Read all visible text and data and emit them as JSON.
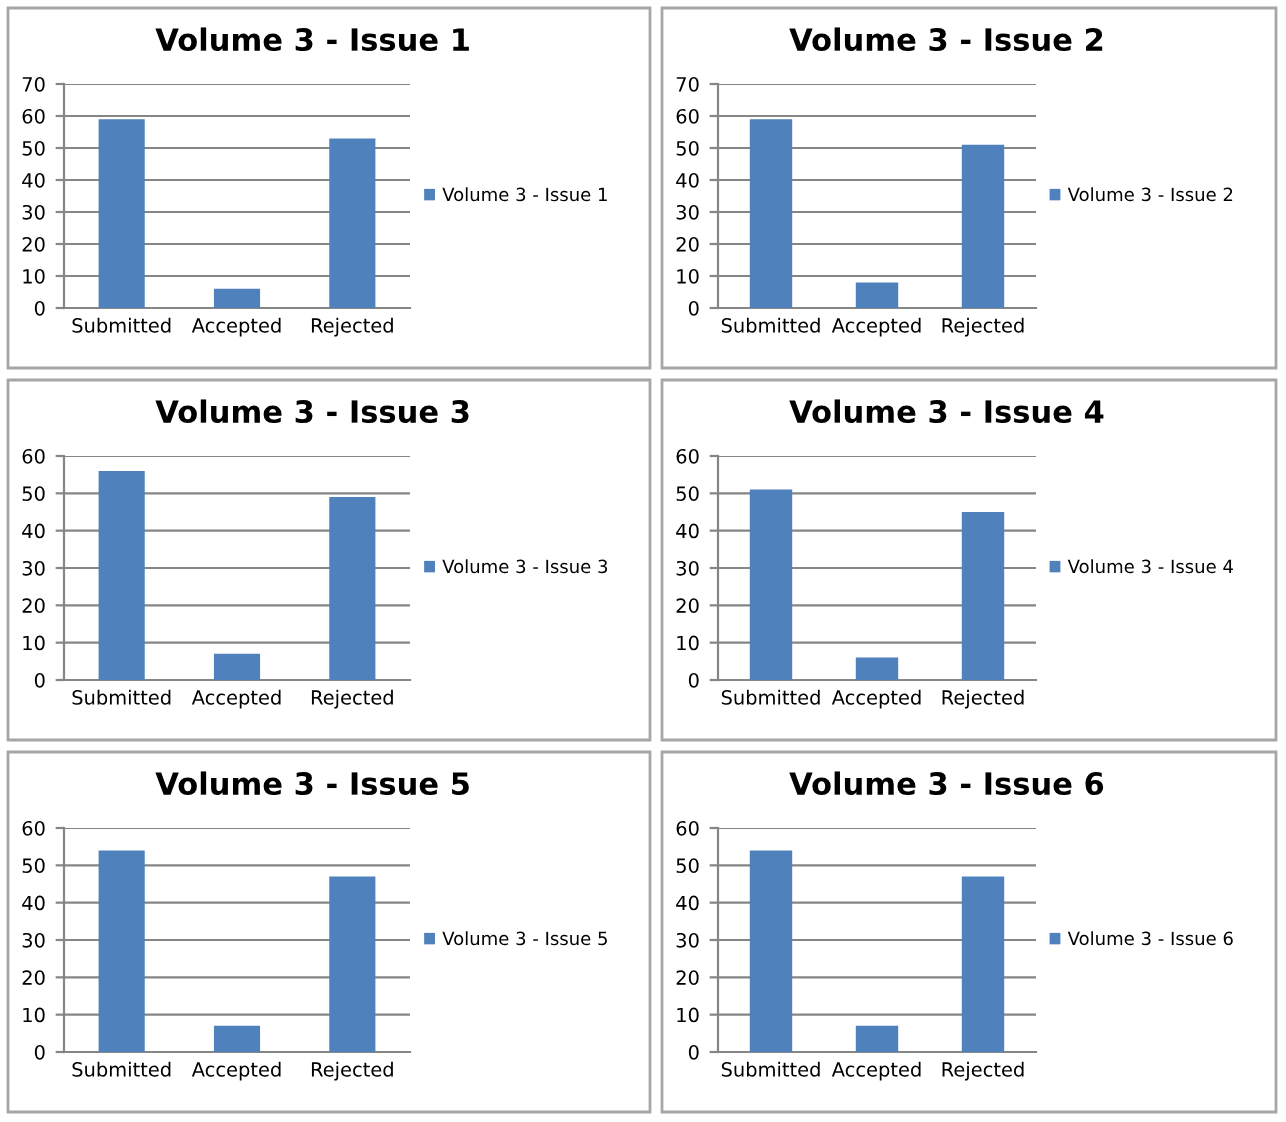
{
  "chart_data": [
    {
      "type": "bar",
      "title": "Volume 3 - Issue 1",
      "categories": [
        "Submitted",
        "Accepted",
        "Rejected"
      ],
      "series": [
        {
          "name": "Volume 3 - Issue 1",
          "color": "#4f81bd",
          "values": [
            59,
            6,
            53
          ]
        }
      ],
      "ylim": [
        0,
        70
      ],
      "yticks": [
        0,
        10,
        20,
        30,
        40,
        50,
        60,
        70
      ],
      "grid": "y",
      "legend": "right"
    },
    {
      "type": "bar",
      "title": "Volume 3 - Issue 2",
      "categories": [
        "Submitted",
        "Accepted",
        "Rejected"
      ],
      "series": [
        {
          "name": "Volume 3 - Issue 2",
          "color": "#4f81bd",
          "values": [
            59,
            8,
            51
          ]
        }
      ],
      "ylim": [
        0,
        70
      ],
      "yticks": [
        0,
        10,
        20,
        30,
        40,
        50,
        60,
        70
      ],
      "grid": "y",
      "legend": "right"
    },
    {
      "type": "bar",
      "title": "Volume 3 - Issue 3",
      "categories": [
        "Submitted",
        "Accepted",
        "Rejected"
      ],
      "series": [
        {
          "name": "Volume 3 - Issue 3",
          "color": "#4f81bd",
          "values": [
            56,
            7,
            49
          ]
        }
      ],
      "ylim": [
        0,
        60
      ],
      "yticks": [
        0,
        10,
        20,
        30,
        40,
        50,
        60
      ],
      "grid": "y",
      "legend": "right"
    },
    {
      "type": "bar",
      "title": "Volume 3 - Issue 4",
      "categories": [
        "Submitted",
        "Accepted",
        "Rejected"
      ],
      "series": [
        {
          "name": "Volume 3 - Issue 4",
          "color": "#4f81bd",
          "values": [
            51,
            6,
            45
          ]
        }
      ],
      "ylim": [
        0,
        60
      ],
      "yticks": [
        0,
        10,
        20,
        30,
        40,
        50,
        60
      ],
      "grid": "y",
      "legend": "right"
    },
    {
      "type": "bar",
      "title": "Volume 3 - Issue 5",
      "categories": [
        "Submitted",
        "Accepted",
        "Rejected"
      ],
      "series": [
        {
          "name": "Volume 3 - Issue 5",
          "color": "#4f81bd",
          "values": [
            54,
            7,
            47
          ]
        }
      ],
      "ylim": [
        0,
        60
      ],
      "yticks": [
        0,
        10,
        20,
        30,
        40,
        50,
        60
      ],
      "grid": "y",
      "legend": "right"
    },
    {
      "type": "bar",
      "title": "Volume 3 - Issue 6",
      "categories": [
        "Submitted",
        "Accepted",
        "Rejected"
      ],
      "series": [
        {
          "name": "Volume 3 - Issue 6",
          "color": "#4f81bd",
          "values": [
            54,
            7,
            47
          ]
        }
      ],
      "ylim": [
        0,
        60
      ],
      "yticks": [
        0,
        10,
        20,
        30,
        40,
        50,
        60
      ],
      "grid": "y",
      "legend": "right"
    }
  ]
}
